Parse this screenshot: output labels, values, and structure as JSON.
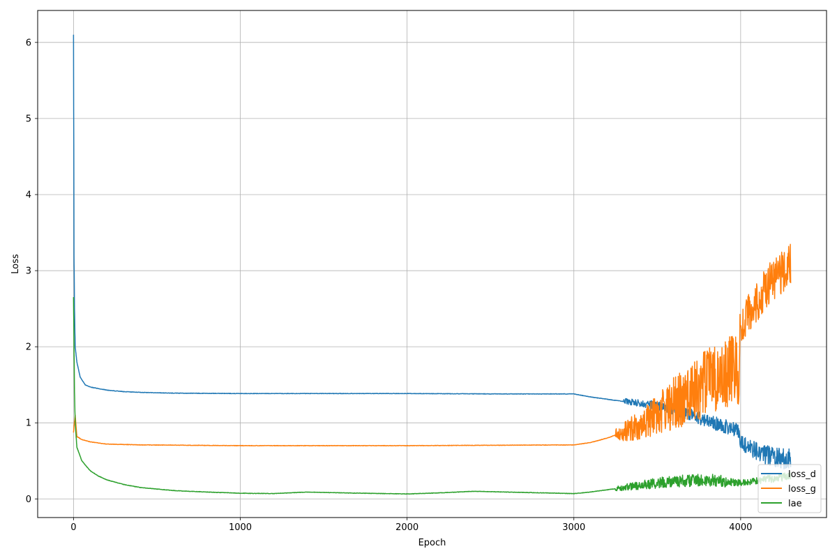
{
  "chart_data": {
    "type": "line",
    "title": "",
    "xlabel": "Epoch",
    "ylabel": "Loss",
    "xlim": [
      -215,
      4515
    ],
    "ylim": [
      -0.245,
      6.42
    ],
    "xticks": [
      0,
      1000,
      2000,
      3000,
      4000
    ],
    "xtick_labels": [
      "0",
      "1000",
      "2000",
      "3000",
      "4000"
    ],
    "yticks": [
      0,
      1,
      2,
      3,
      4,
      5,
      6
    ],
    "ytick_labels": [
      "0",
      "1",
      "2",
      "3",
      "4",
      "5",
      "6"
    ],
    "grid": true,
    "legend_position": "lower right",
    "series": [
      {
        "name": "loss_d",
        "color": "#1f77b4",
        "points": [
          [
            0,
            6.1
          ],
          [
            3,
            3.2
          ],
          [
            6,
            2.5
          ],
          [
            10,
            2.0
          ],
          [
            20,
            1.8
          ],
          [
            40,
            1.6
          ],
          [
            70,
            1.5
          ],
          [
            100,
            1.47
          ],
          [
            150,
            1.45
          ],
          [
            200,
            1.43
          ],
          [
            300,
            1.41
          ],
          [
            400,
            1.4
          ],
          [
            600,
            1.39
          ],
          [
            1000,
            1.385
          ],
          [
            1500,
            1.385
          ],
          [
            2000,
            1.385
          ],
          [
            2500,
            1.38
          ],
          [
            3000,
            1.38
          ],
          [
            3100,
            1.34
          ],
          [
            3200,
            1.31
          ],
          [
            3300,
            1.28
          ],
          [
            3400,
            1.26
          ],
          [
            3500,
            1.22
          ],
          [
            3600,
            1.17
          ],
          [
            3700,
            1.11
          ],
          [
            3800,
            1.02
          ],
          [
            3900,
            0.96
          ],
          [
            3990,
            0.9
          ],
          [
            4000,
            0.75
          ],
          [
            4050,
            0.68
          ],
          [
            4100,
            0.62
          ],
          [
            4150,
            0.58
          ],
          [
            4200,
            0.55
          ],
          [
            4250,
            0.53
          ],
          [
            4300,
            0.52
          ]
        ],
        "noise": [
          [
            3300,
            0.04
          ],
          [
            3500,
            0.06
          ],
          [
            3700,
            0.08
          ],
          [
            3990,
            0.1
          ],
          [
            4000,
            0.1
          ],
          [
            4300,
            0.15
          ]
        ]
      },
      {
        "name": "loss_g",
        "color": "#ff7f0e",
        "points": [
          [
            0,
            0.87
          ],
          [
            5,
            1.0
          ],
          [
            10,
            1.1
          ],
          [
            20,
            0.82
          ],
          [
            50,
            0.78
          ],
          [
            100,
            0.75
          ],
          [
            200,
            0.72
          ],
          [
            400,
            0.71
          ],
          [
            1000,
            0.7
          ],
          [
            1500,
            0.7
          ],
          [
            2000,
            0.7
          ],
          [
            2500,
            0.705
          ],
          [
            3000,
            0.71
          ],
          [
            3100,
            0.74
          ],
          [
            3200,
            0.8
          ],
          [
            3300,
            0.88
          ],
          [
            3400,
            0.98
          ],
          [
            3500,
            1.1
          ],
          [
            3600,
            1.25
          ],
          [
            3700,
            1.4
          ],
          [
            3800,
            1.52
          ],
          [
            3900,
            1.62
          ],
          [
            3990,
            1.75
          ],
          [
            4000,
            2.3
          ],
          [
            4050,
            2.45
          ],
          [
            4100,
            2.6
          ],
          [
            4150,
            2.75
          ],
          [
            4200,
            2.9
          ],
          [
            4250,
            3.0
          ],
          [
            4300,
            3.05
          ]
        ],
        "noise": [
          [
            3250,
            0.08
          ],
          [
            3400,
            0.2
          ],
          [
            3600,
            0.35
          ],
          [
            3800,
            0.45
          ],
          [
            3990,
            0.5
          ],
          [
            4000,
            0.25
          ],
          [
            4300,
            0.3
          ]
        ]
      },
      {
        "name": "lae",
        "color": "#2ca02c",
        "points": [
          [
            0,
            2.65
          ],
          [
            3,
            2.0
          ],
          [
            6,
            1.4
          ],
          [
            10,
            1.0
          ],
          [
            20,
            0.68
          ],
          [
            50,
            0.5
          ],
          [
            100,
            0.37
          ],
          [
            150,
            0.3
          ],
          [
            200,
            0.25
          ],
          [
            300,
            0.19
          ],
          [
            400,
            0.15
          ],
          [
            600,
            0.11
          ],
          [
            800,
            0.09
          ],
          [
            1000,
            0.075
          ],
          [
            1200,
            0.07
          ],
          [
            1400,
            0.09
          ],
          [
            1600,
            0.08
          ],
          [
            2000,
            0.065
          ],
          [
            2200,
            0.08
          ],
          [
            2400,
            0.1
          ],
          [
            2600,
            0.09
          ],
          [
            3000,
            0.07
          ],
          [
            3100,
            0.09
          ],
          [
            3200,
            0.12
          ],
          [
            3300,
            0.15
          ],
          [
            3400,
            0.18
          ],
          [
            3500,
            0.21
          ],
          [
            3600,
            0.23
          ],
          [
            3700,
            0.24
          ],
          [
            3800,
            0.25
          ],
          [
            3900,
            0.23
          ],
          [
            4000,
            0.21
          ],
          [
            4100,
            0.24
          ],
          [
            4200,
            0.27
          ],
          [
            4300,
            0.3
          ]
        ],
        "noise": [
          [
            3250,
            0.03
          ],
          [
            3400,
            0.06
          ],
          [
            3600,
            0.08
          ],
          [
            3900,
            0.08
          ],
          [
            4000,
            0.04
          ],
          [
            4300,
            0.06
          ]
        ]
      }
    ]
  }
}
